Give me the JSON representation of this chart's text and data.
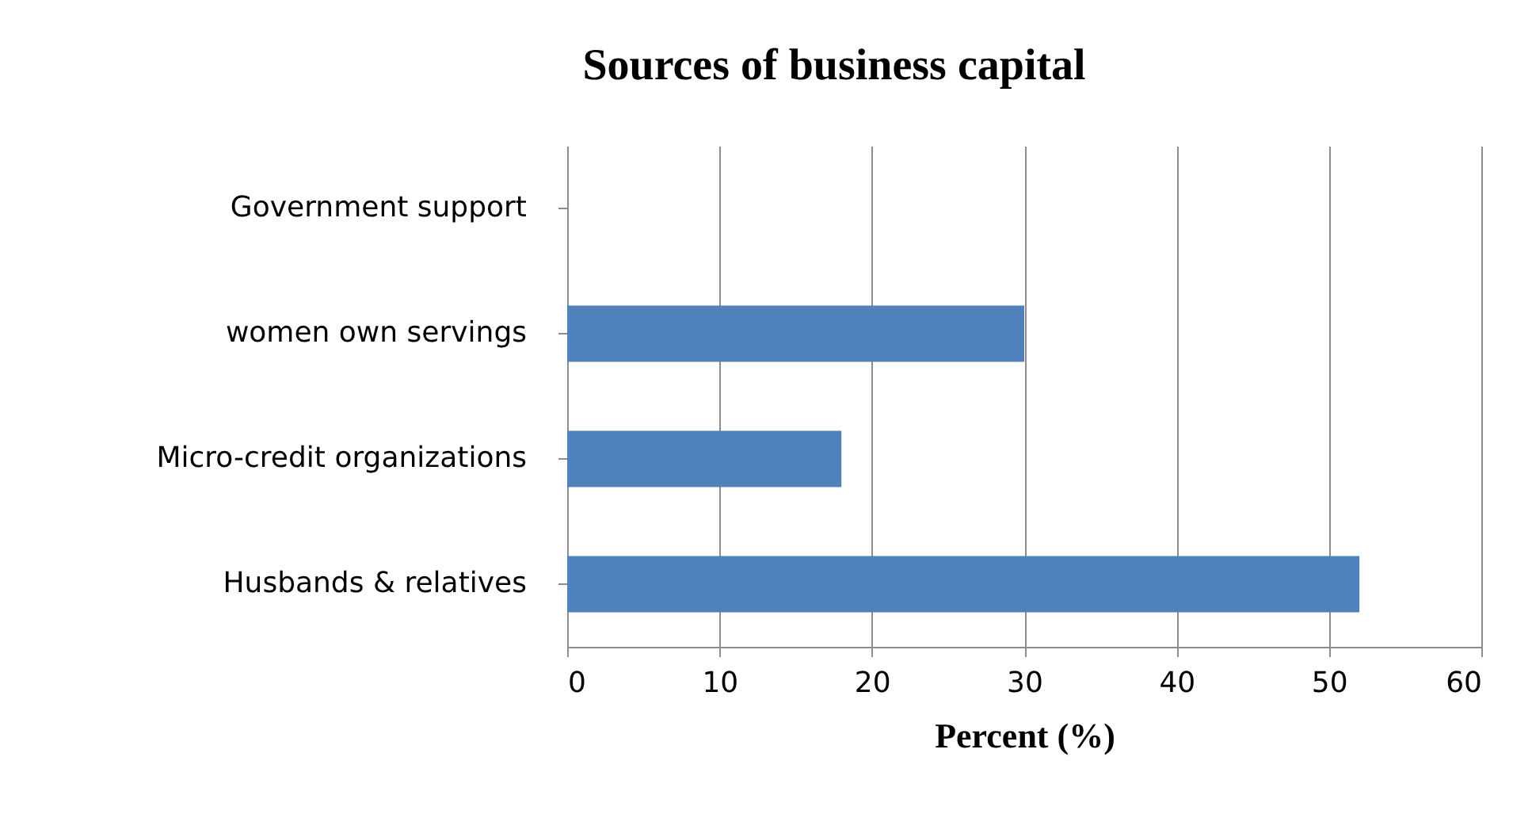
{
  "chart_data": {
    "type": "bar",
    "orientation": "horizontal",
    "title": "Sources of business capital",
    "xlabel": "Percent (%)",
    "categories": [
      "Government support",
      "women own servings",
      "Micro-credit organizations",
      "Husbands & relatives"
    ],
    "values": [
      0,
      30,
      18,
      52
    ],
    "color": "#4f81bd",
    "xlim": [
      0,
      60
    ],
    "xticks": [
      0,
      10,
      20,
      30,
      40,
      50,
      60
    ],
    "grid": "x"
  }
}
